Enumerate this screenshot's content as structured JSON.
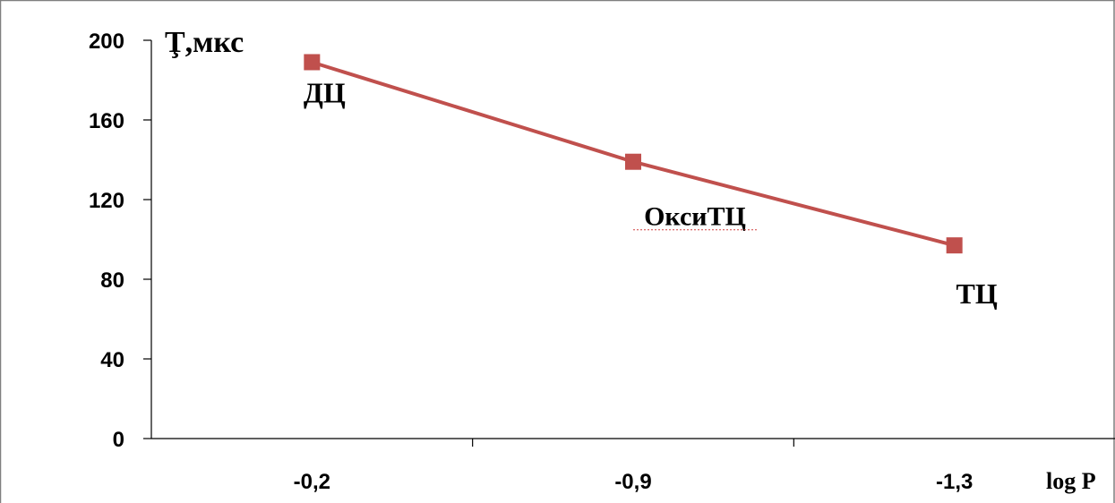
{
  "chart_data": {
    "type": "line",
    "title": "",
    "ylabel": "Ţ,мкс",
    "xlabel": "log P",
    "categories": [
      "-0,2",
      "-0,9",
      "-1,3"
    ],
    "ylim": [
      0,
      200
    ],
    "yticks": [
      "0",
      "40",
      "80",
      "120",
      "160",
      "200"
    ],
    "series": [
      {
        "values": [
          189,
          139,
          97
        ],
        "point_labels": [
          "ДЦ",
          "ОксиТЦ",
          "ТЦ"
        ]
      }
    ],
    "grid": false,
    "legend": "none",
    "colors": {
      "series": "#c0504d",
      "axis": "#000000",
      "frame": "#7f7f7f"
    }
  }
}
